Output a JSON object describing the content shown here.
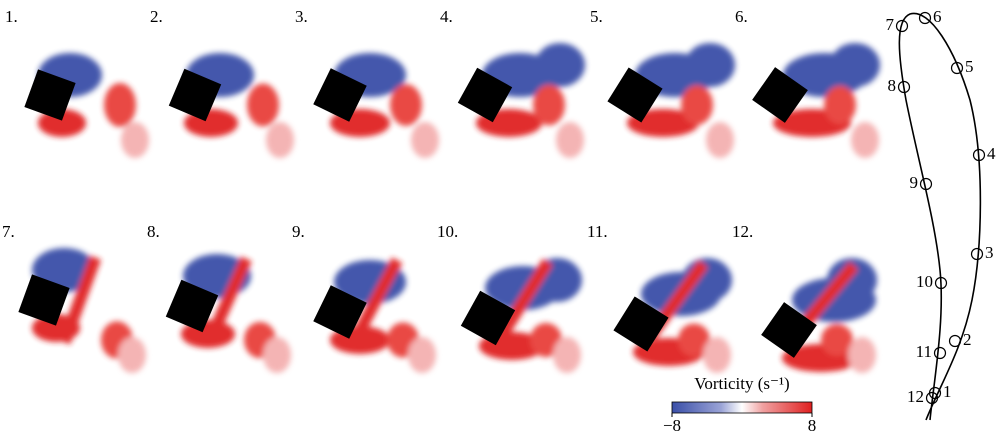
{
  "panels": [
    "1.",
    "2.",
    "3.",
    "4.",
    "5.",
    "6.",
    "7.",
    "8.",
    "9.",
    "10.",
    "11.",
    "12."
  ],
  "colorbar": {
    "label": "Vorticity (s⁻¹)",
    "lim": [
      -8,
      8
    ],
    "ticks": [
      {
        "value": -8,
        "label": "−8"
      },
      {
        "value": 8,
        "label": "8"
      }
    ]
  },
  "trajectory": {
    "points": [
      "1",
      "2",
      "3",
      "4",
      "5",
      "6",
      "7",
      "8",
      "9",
      "10",
      "11",
      "12"
    ]
  }
}
